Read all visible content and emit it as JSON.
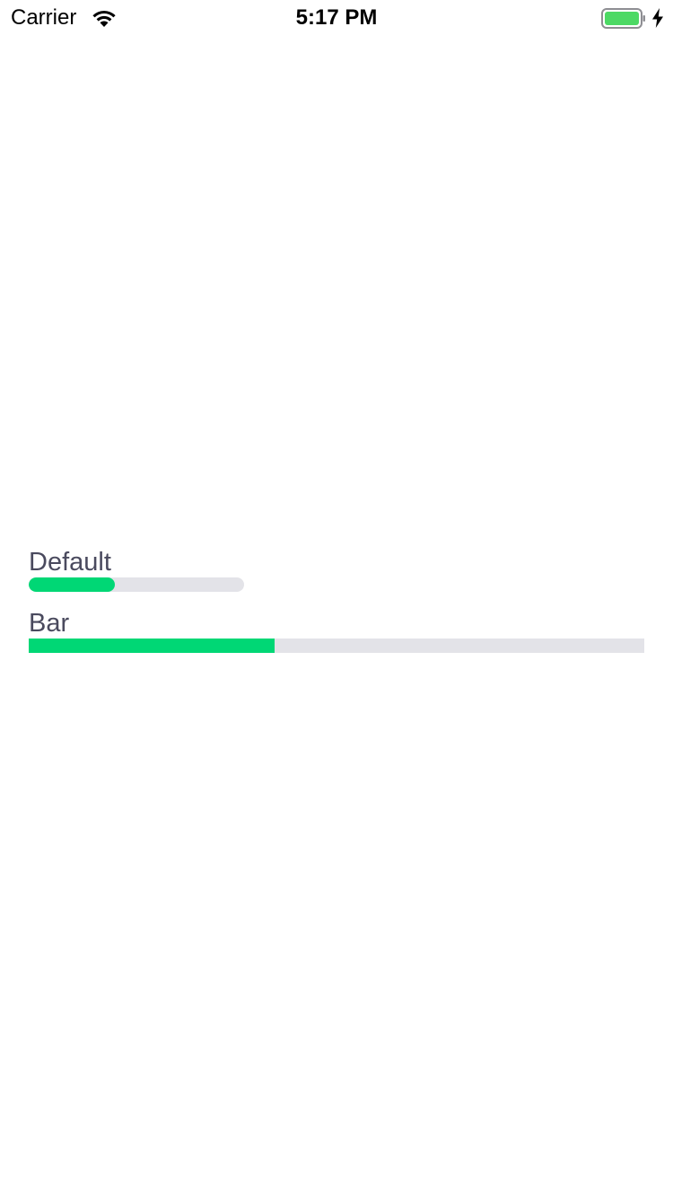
{
  "status_bar": {
    "carrier": "Carrier",
    "time": "5:17 PM",
    "wifi_icon": "wifi-icon",
    "battery_icon": "battery-icon",
    "charging_icon": "lightning-bolt-icon",
    "battery_level": 1.0,
    "battery_color": "#4cd964"
  },
  "progress": {
    "accent_color": "#00d775",
    "track_color": "#e3e3e8",
    "items": [
      {
        "label": "Default",
        "style": "rounded",
        "value": 0.4
      },
      {
        "label": "Bar",
        "style": "bar",
        "value": 0.4
      }
    ]
  }
}
